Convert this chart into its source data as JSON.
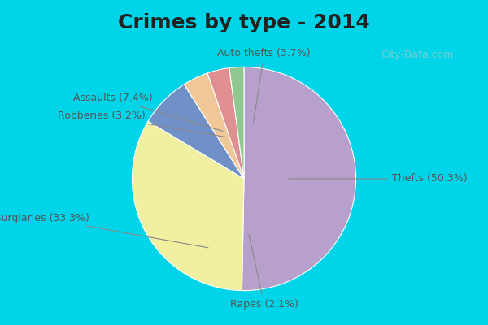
{
  "title": "Crimes by type - 2014",
  "slices": [
    {
      "label": "Thefts",
      "pct": 50.3,
      "color": "#b8a0cc"
    },
    {
      "label": "Burglaries",
      "pct": 33.3,
      "color": "#f0f0a0"
    },
    {
      "label": "Assaults",
      "pct": 7.4,
      "color": "#7090c8"
    },
    {
      "label": "Auto thefts",
      "pct": 3.7,
      "color": "#f0c898"
    },
    {
      "label": "Robberies",
      "pct": 3.2,
      "color": "#e09090"
    },
    {
      "label": "Rapes",
      "pct": 2.1,
      "color": "#90c890"
    }
  ],
  "background_top": "#00d4e8",
  "background_main": "#c8e8d8",
  "title_fontsize": 18,
  "label_fontsize": 9,
  "startangle": 90,
  "watermark": "City-Data.com"
}
